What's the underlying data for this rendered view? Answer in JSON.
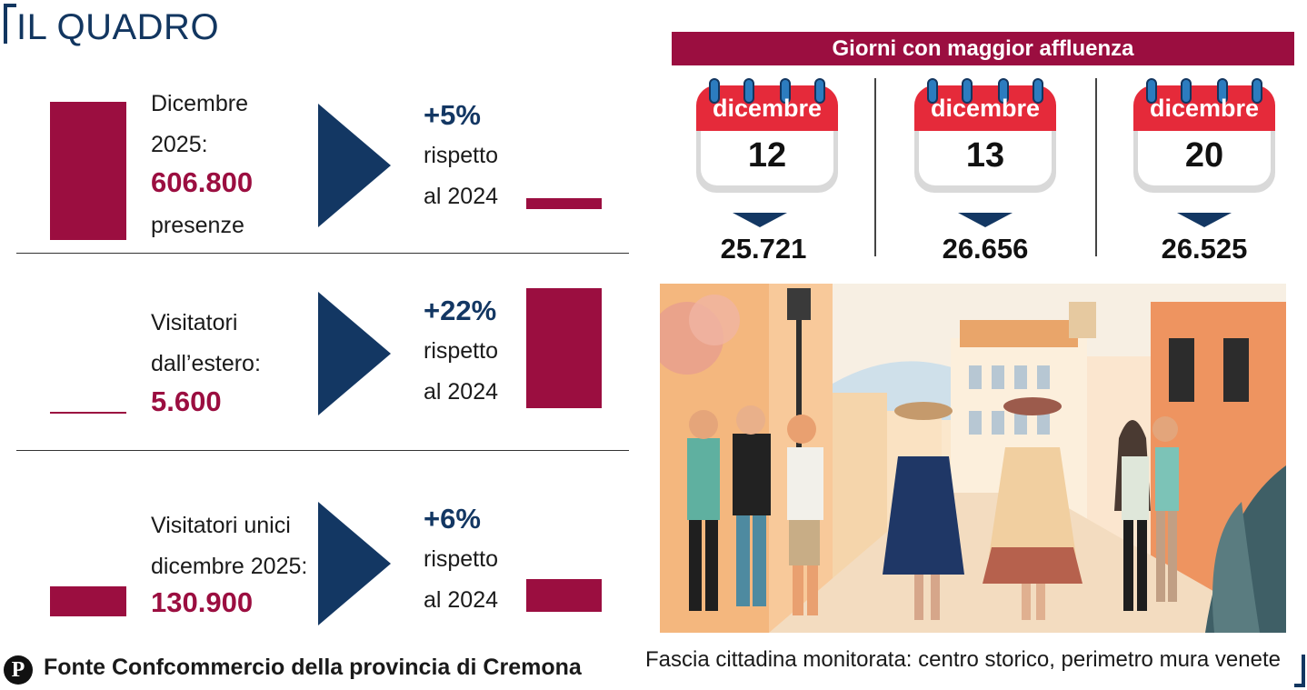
{
  "header": {
    "title": "IL QUADRO"
  },
  "rows": [
    {
      "label_lines": [
        "Dicembre",
        "2025:"
      ],
      "value": "606.800",
      "suffix": "presenze",
      "change": "+5%",
      "change_text": [
        "rispetto",
        "al 2024"
      ],
      "share_left": 1.0,
      "share_right": 0.08
    },
    {
      "label_lines": [
        "Visitatori",
        "dall’estero:"
      ],
      "value": "5.600",
      "suffix": "",
      "change": "+22%",
      "change_text": [
        "rispetto",
        "al 2024"
      ],
      "share_left": 0.01,
      "share_right": 1.0
    },
    {
      "label_lines": [
        "Visitatori unici",
        "dicembre 2025:"
      ],
      "value": "130.900",
      "suffix": "",
      "change": "+6%",
      "change_text": [
        "rispetto",
        "al 2024"
      ],
      "share_left": 0.21,
      "share_right": 0.27
    }
  ],
  "peak_days": {
    "title": "Giorni con maggior affluenza",
    "days": [
      {
        "month": "dicembre",
        "day": "12",
        "count": "25.721"
      },
      {
        "month": "dicembre",
        "day": "13",
        "count": "26.656"
      },
      {
        "month": "dicembre",
        "day": "20",
        "count": "26.525"
      }
    ]
  },
  "caption": "Fascia cittadina monitorata: centro storico, perimetro mura venete",
  "footer": {
    "logo_letter": "P",
    "source": "Fonte Confcommercio della provincia di Cremona"
  },
  "colors": {
    "brand_red": "#9b0e40",
    "navy": "#133763",
    "calendar_red": "#e52a3a"
  },
  "icons": [
    "calendar-icon",
    "arrow-right-icon",
    "arrow-down-icon",
    "publisher-logo"
  ]
}
